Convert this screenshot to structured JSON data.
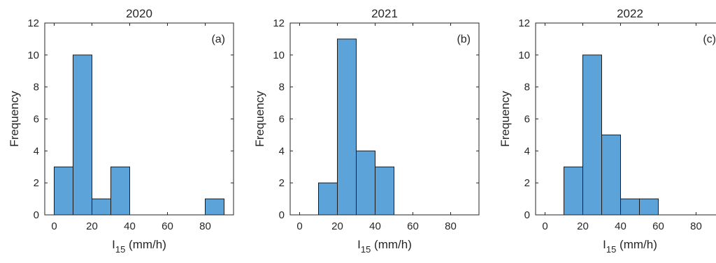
{
  "chart_data": [
    {
      "type": "bar",
      "title": "2020",
      "panel_label": "(a)",
      "xlabel": {
        "main": "I",
        "sub": "15",
        "unit": "(mm/h)"
      },
      "ylabel": "Frequency",
      "xlim": [
        -5,
        95
      ],
      "ylim": [
        0,
        12
      ],
      "xticks": [
        0,
        20,
        40,
        60,
        80
      ],
      "yticks": [
        0,
        2,
        4,
        6,
        8,
        10,
        12
      ],
      "bins": [
        [
          0,
          10
        ],
        [
          10,
          20
        ],
        [
          20,
          30
        ],
        [
          30,
          40
        ],
        [
          80,
          90
        ]
      ],
      "values": [
        3,
        10,
        1,
        3,
        1
      ]
    },
    {
      "type": "bar",
      "title": "2021",
      "panel_label": "(b)",
      "xlabel": {
        "main": "I",
        "sub": "15",
        "unit": "(mm/h)"
      },
      "ylabel": "Frequency",
      "xlim": [
        -5,
        95
      ],
      "ylim": [
        0,
        12
      ],
      "xticks": [
        0,
        20,
        40,
        60,
        80
      ],
      "yticks": [
        0,
        2,
        4,
        6,
        8,
        10,
        12
      ],
      "bins": [
        [
          10,
          20
        ],
        [
          20,
          30
        ],
        [
          30,
          40
        ],
        [
          40,
          50
        ]
      ],
      "values": [
        2,
        11,
        4,
        3
      ]
    },
    {
      "type": "bar",
      "title": "2022",
      "panel_label": "(c)",
      "xlabel": {
        "main": "I",
        "sub": "15",
        "unit": "(mm/h)"
      },
      "ylabel": "Frequency",
      "xlim": [
        -5,
        95
      ],
      "ylim": [
        0,
        12
      ],
      "xticks": [
        0,
        20,
        40,
        60,
        80
      ],
      "yticks": [
        0,
        2,
        4,
        6,
        8,
        10,
        12
      ],
      "bins": [
        [
          10,
          20
        ],
        [
          20,
          30
        ],
        [
          30,
          40
        ],
        [
          40,
          50
        ],
        [
          50,
          60
        ]
      ],
      "values": [
        3,
        10,
        5,
        1,
        1
      ]
    }
  ],
  "colors": {
    "bar_fill": "#5ba3d9",
    "bar_edge": "#1a1a1a",
    "axis": "#262626"
  }
}
